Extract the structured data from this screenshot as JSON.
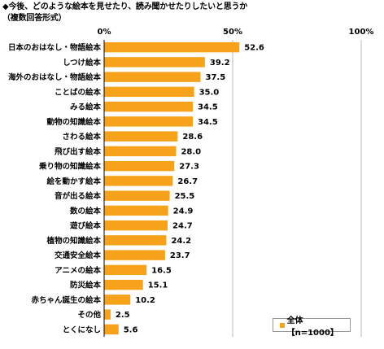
{
  "title": "◆今後、どのような絵本を見せたり、読み聞かせたりしたいと思うか",
  "subtitle": "（複数回答形式）",
  "legend_label": "全体【n=1000】",
  "colors": {
    "bar": "#F7A21B",
    "axis": "#000000",
    "grid": "#BBBBBB"
  },
  "chart_data": {
    "type": "bar",
    "orientation": "horizontal",
    "xlim": [
      0,
      100
    ],
    "ticks": [
      "0%",
      "50%",
      "100%"
    ],
    "tick_values": [
      0,
      50,
      100
    ],
    "categories": [
      "日本のおはなし・物語絵本",
      "しつけ絵本",
      "海外のおはなし・物語絵本",
      "ことばの絵本",
      "みる絵本",
      "動物の知識絵本",
      "さわる絵本",
      "飛び出す絵本",
      "乗り物の知識絵本",
      "絵を動かす絵本",
      "音が出る絵本",
      "数の絵本",
      "遊び絵本",
      "植物の知識絵本",
      "交通安全絵本",
      "アニメの絵本",
      "防災絵本",
      "赤ちゃん誕生の絵本",
      "その他",
      "とくになし"
    ],
    "series": [
      {
        "name": "全体【n=1000】",
        "values": [
          52.6,
          39.2,
          37.5,
          35.0,
          34.5,
          34.5,
          28.6,
          28.0,
          27.3,
          26.7,
          25.5,
          24.9,
          24.7,
          24.2,
          23.7,
          16.5,
          15.1,
          10.2,
          2.5,
          5.6
        ],
        "labels": [
          "52.6",
          "39.2",
          "37.5",
          "35.0",
          "34.5",
          "34.5",
          "28.6",
          "28.0",
          "27.3",
          "26.7",
          "25.5",
          "24.9",
          "24.7",
          "24.2",
          "23.7",
          "16.5",
          "15.1",
          "10.2",
          "2.5",
          "5.6"
        ]
      }
    ]
  }
}
